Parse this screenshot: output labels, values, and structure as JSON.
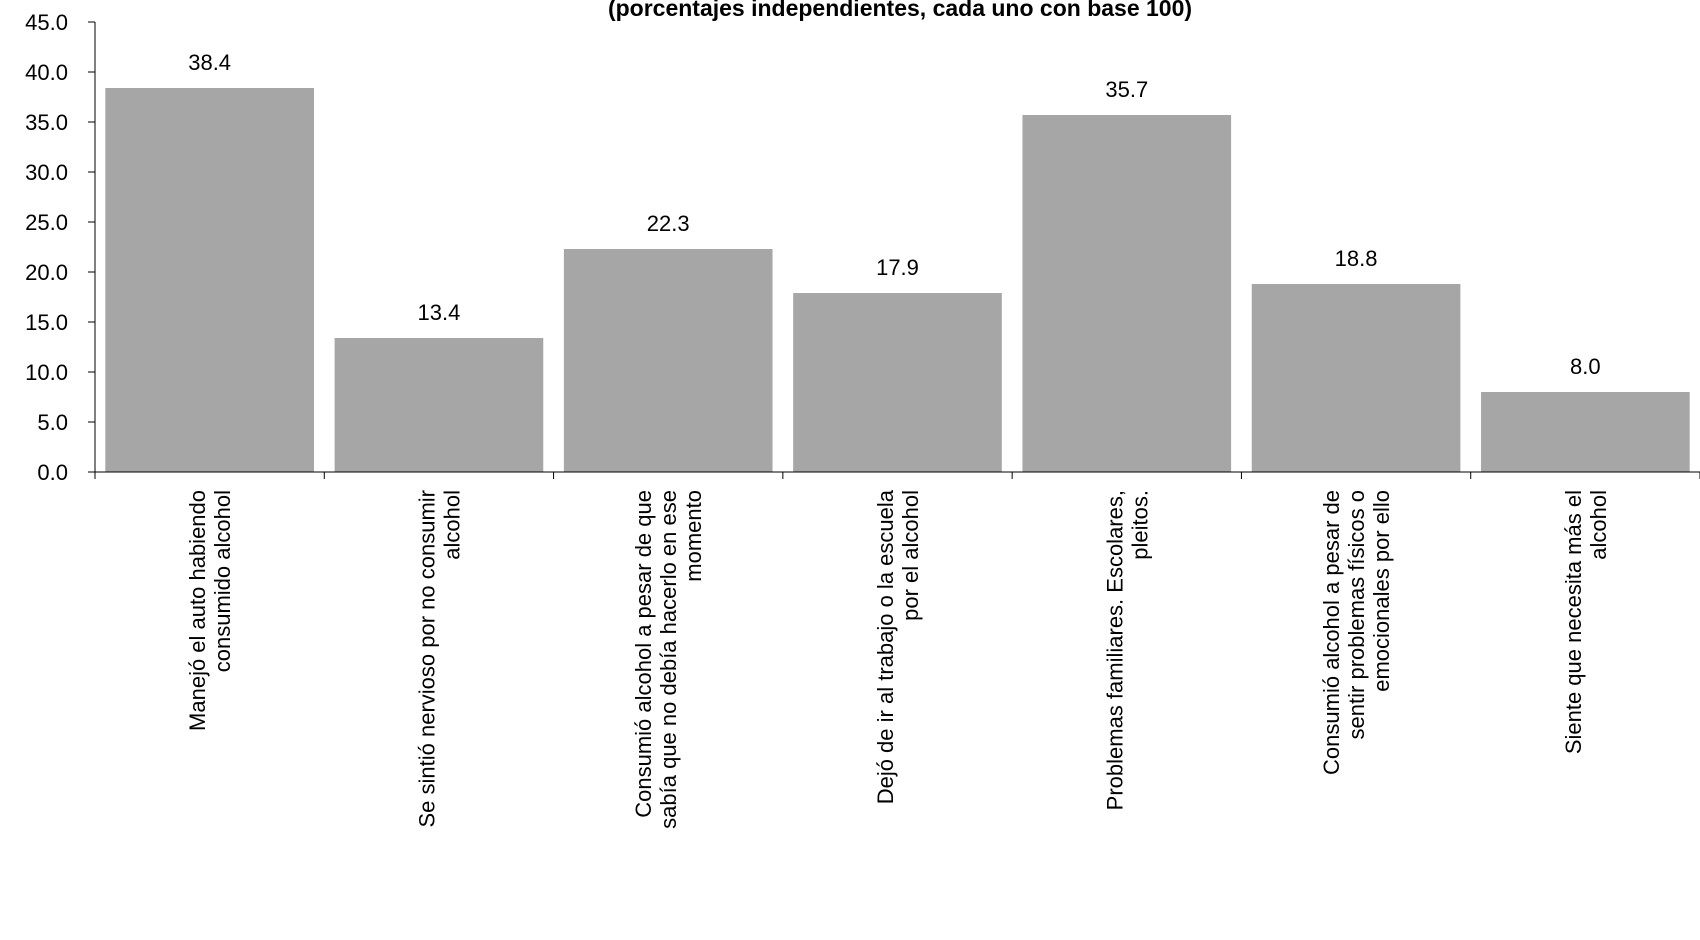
{
  "chart_data": {
    "type": "bar",
    "title": "(porcentajes independientes, cada uno con base 100)",
    "categories": [
      [
        "Manejó el auto habiendo",
        "consumido alcohol"
      ],
      [
        "Se sintió nervioso por no consumir",
        "alcohol"
      ],
      [
        "Consumió alcohol a pesar de que",
        "sabía que no debía hacerlo en ese",
        "momento"
      ],
      [
        "Dejó de ir al trabajo o la escuela",
        "por el alcohol"
      ],
      [
        "Problemas familiares. Escolares,",
        "pleitos."
      ],
      [
        "Consumió alcohol a pesar de",
        "sentir problemas físicos o",
        "emocionales por ello"
      ],
      [
        "Siente que necesita más el",
        "alcohol"
      ]
    ],
    "values": [
      38.4,
      13.4,
      22.3,
      17.9,
      35.7,
      18.8,
      8.0
    ],
    "value_labels": [
      "38.4",
      "13.4",
      "22.3",
      "17.9",
      "35.7",
      "18.8",
      "8.0"
    ],
    "color": "#a6a6a6",
    "ylim": [
      0,
      45
    ],
    "yticks": [
      {
        "value": 0,
        "label": "0.0"
      },
      {
        "value": 5,
        "label": "5.0"
      },
      {
        "value": 10,
        "label": "10.0"
      },
      {
        "value": 15,
        "label": "15.0"
      },
      {
        "value": 20,
        "label": "20.0"
      },
      {
        "value": 25,
        "label": "25.0"
      },
      {
        "value": 30,
        "label": "30.0"
      },
      {
        "value": 35,
        "label": "35.0"
      },
      {
        "value": 40,
        "label": "40.0"
      },
      {
        "value": 45,
        "label": "45.0"
      }
    ]
  }
}
